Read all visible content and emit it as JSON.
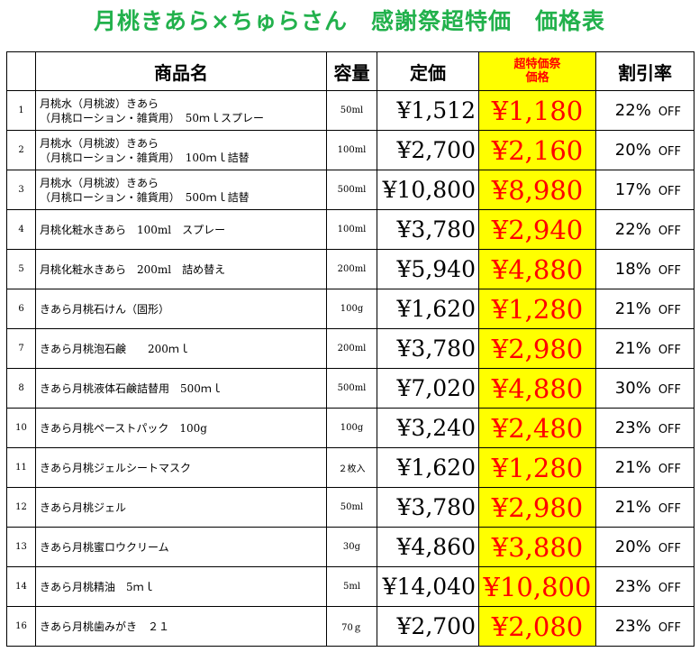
{
  "title": "月桃きあら×ちゅらさん　感謝祭超特価　価格表",
  "headers": {
    "name": "商品名",
    "volume": "容量",
    "price": "定価",
    "sale": "超特価祭\n価格",
    "discount": "割引率"
  },
  "rows": [
    {
      "no": "1",
      "name_lines": [
        "月桃水（月桃波）きあら",
        "（月桃ローション・雑貨用）　50ｍｌスプレー"
      ],
      "volume": "50ml",
      "price": "¥1,512",
      "sale": "¥1,180",
      "discount": "22%",
      "off": "OFF"
    },
    {
      "no": "2",
      "name_lines": [
        "月桃水（月桃波）きあら",
        "（月桃ローション・雑貨用）　100ｍｌ詰替"
      ],
      "volume": "100ml",
      "price": "¥2,700",
      "sale": "¥2,160",
      "discount": "20%",
      "off": "OFF"
    },
    {
      "no": "3",
      "name_lines": [
        "月桃水（月桃波）きあら",
        "（月桃ローション・雑貨用）　500ｍｌ詰替"
      ],
      "volume": "500ml",
      "price": "¥10,800",
      "sale": "¥8,980",
      "discount": "17%",
      "off": "OFF"
    },
    {
      "no": "4",
      "name_lines": [
        "月桃化粧水きあら　100ml　スプレー"
      ],
      "volume": "100ml",
      "price": "¥3,780",
      "sale": "¥2,940",
      "discount": "22%",
      "off": "OFF"
    },
    {
      "no": "5",
      "name_lines": [
        "月桃化粧水きあら　200ml　詰め替え"
      ],
      "volume": "200ml",
      "price": "¥5,940",
      "sale": "¥4,880",
      "discount": "18%",
      "off": "OFF"
    },
    {
      "no": "6",
      "name_lines": [
        "きあら月桃石けん（固形）"
      ],
      "volume": "100g",
      "price": "¥1,620",
      "sale": "¥1,280",
      "discount": "21%",
      "off": "OFF"
    },
    {
      "no": "7",
      "name_lines": [
        "きあら月桃泡石鹸　　200ｍｌ"
      ],
      "volume": "200ml",
      "price": "¥3,780",
      "sale": "¥2,980",
      "discount": "21%",
      "off": "OFF"
    },
    {
      "no": "8",
      "name_lines": [
        "きあら月桃液体石鹸詰替用　500ｍｌ"
      ],
      "volume": "500ml",
      "price": "¥7,020",
      "sale": "¥4,880",
      "discount": "30%",
      "off": "OFF"
    },
    {
      "no": "10",
      "name_lines": [
        "きあら月桃ペーストパック　100g"
      ],
      "volume": "100g",
      "price": "¥3,240",
      "sale": "¥2,480",
      "discount": "23%",
      "off": "OFF"
    },
    {
      "no": "11",
      "name_lines": [
        "きあら月桃ジェルシートマスク"
      ],
      "volume": "２枚入",
      "price": "¥1,620",
      "sale": "¥1,280",
      "discount": "21%",
      "off": "OFF"
    },
    {
      "no": "12",
      "name_lines": [
        "きあら月桃ジェル"
      ],
      "volume": "50ml",
      "price": "¥3,780",
      "sale": "¥2,980",
      "discount": "21%",
      "off": "OFF"
    },
    {
      "no": "13",
      "name_lines": [
        "きあら月桃蜜ロウクリーム"
      ],
      "volume": "30g",
      "price": "¥4,860",
      "sale": "¥3,880",
      "discount": "20%",
      "off": "OFF"
    },
    {
      "no": "14",
      "name_lines": [
        "きあら月桃精油　5ｍｌ"
      ],
      "volume": "5ml",
      "price": "¥14,040",
      "sale": "¥10,800",
      "discount": "23%",
      "off": "OFF"
    },
    {
      "no": "16",
      "name_lines": [
        "きあら月桃歯みがき　２１"
      ],
      "volume": "70ｇ",
      "price": "¥2,700",
      "sale": "¥2,080",
      "discount": "23%",
      "off": "OFF"
    }
  ]
}
